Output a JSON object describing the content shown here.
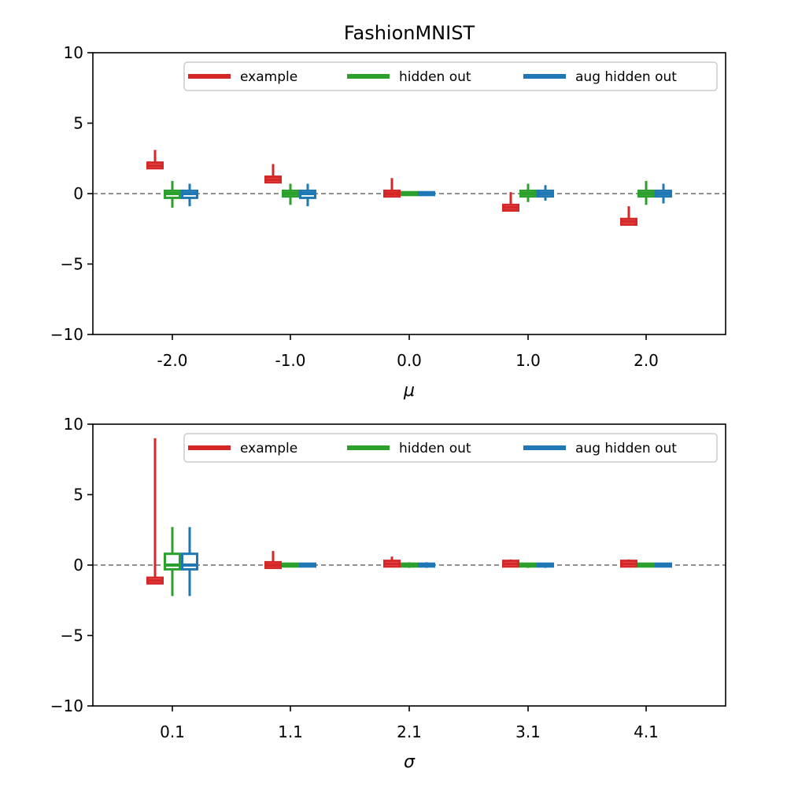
{
  "colors": {
    "example": "#d62728",
    "hidden": "#2ca02c",
    "aug": "#1f77b4",
    "zeroline": "#808080"
  },
  "chart_data": [
    {
      "type": "boxplot",
      "title": "FashionMNIST",
      "xlabel": "μ",
      "ylabel": "",
      "ylim": [
        -10,
        10
      ],
      "yticks": [
        -10,
        -5,
        0,
        5,
        10
      ],
      "ytick_labels": [
        "−10",
        "−5",
        "0",
        "5",
        "10"
      ],
      "categories": [
        "-2.0",
        "-1.0",
        "0.0",
        "1.0",
        "2.0"
      ],
      "zero_line": true,
      "legend": {
        "placement": "top-right",
        "entries": [
          "example",
          "hidden out",
          "aug hidden out"
        ]
      },
      "series": [
        {
          "name": "example",
          "color_key": "example",
          "boxes": [
            {
              "min": 1.8,
              "q1": 1.8,
              "median": 2.0,
              "q3": 2.2,
              "max": 3.1
            },
            {
              "min": 0.8,
              "q1": 0.8,
              "median": 1.0,
              "q3": 1.2,
              "max": 2.1
            },
            {
              "min": -0.2,
              "q1": -0.2,
              "median": 0.0,
              "q3": 0.2,
              "max": 1.1
            },
            {
              "min": -1.2,
              "q1": -1.2,
              "median": -1.0,
              "q3": -0.8,
              "max": 0.1
            },
            {
              "min": -2.2,
              "q1": -2.2,
              "median": -2.0,
              "q3": -1.8,
              "max": -0.9
            }
          ]
        },
        {
          "name": "hidden out",
          "color_key": "hidden",
          "boxes": [
            {
              "min": -1.0,
              "q1": -0.3,
              "median": 0.0,
              "q3": 0.2,
              "max": 0.9
            },
            {
              "min": -0.8,
              "q1": -0.2,
              "median": 0.0,
              "q3": 0.2,
              "max": 0.7
            },
            {
              "min": -0.1,
              "q1": -0.1,
              "median": 0.0,
              "q3": 0.1,
              "max": 0.1
            },
            {
              "min": -0.6,
              "q1": -0.2,
              "median": 0.0,
              "q3": 0.2,
              "max": 0.7
            },
            {
              "min": -0.8,
              "q1": -0.2,
              "median": 0.0,
              "q3": 0.2,
              "max": 0.9
            }
          ]
        },
        {
          "name": "aug hidden out",
          "color_key": "aug",
          "boxes": [
            {
              "min": -0.9,
              "q1": -0.3,
              "median": 0.0,
              "q3": 0.2,
              "max": 0.7
            },
            {
              "min": -0.9,
              "q1": -0.3,
              "median": 0.0,
              "q3": 0.2,
              "max": 0.7
            },
            {
              "min": -0.1,
              "q1": -0.1,
              "median": 0.0,
              "q3": 0.1,
              "max": 0.1
            },
            {
              "min": -0.5,
              "q1": -0.2,
              "median": 0.0,
              "q3": 0.2,
              "max": 0.6
            },
            {
              "min": -0.7,
              "q1": -0.2,
              "median": 0.0,
              "q3": 0.2,
              "max": 0.7
            }
          ]
        }
      ]
    },
    {
      "type": "boxplot",
      "title": "",
      "xlabel": "σ",
      "ylabel": "",
      "ylim": [
        -10,
        10
      ],
      "yticks": [
        -10,
        -5,
        0,
        5,
        10
      ],
      "ytick_labels": [
        "−10",
        "−5",
        "0",
        "5",
        "10"
      ],
      "categories": [
        "0.1",
        "1.1",
        "2.1",
        "3.1",
        "4.1"
      ],
      "zero_line": true,
      "legend": {
        "placement": "top-right",
        "entries": [
          "example",
          "hidden out",
          "aug hidden out"
        ]
      },
      "series": [
        {
          "name": "example",
          "color_key": "example",
          "boxes": [
            {
              "min": -1.3,
              "q1": -1.3,
              "median": -1.1,
              "q3": -0.9,
              "max": 9.0
            },
            {
              "min": -0.2,
              "q1": -0.2,
              "median": 0.0,
              "q3": 0.2,
              "max": 1.0
            },
            {
              "min": -0.1,
              "q1": -0.1,
              "median": 0.1,
              "q3": 0.3,
              "max": 0.6
            },
            {
              "min": -0.1,
              "q1": -0.1,
              "median": 0.1,
              "q3": 0.3,
              "max": 0.4
            },
            {
              "min": -0.1,
              "q1": -0.1,
              "median": 0.1,
              "q3": 0.3,
              "max": 0.4
            }
          ]
        },
        {
          "name": "hidden out",
          "color_key": "hidden",
          "boxes": [
            {
              "min": -2.2,
              "q1": -0.3,
              "median": 0.0,
              "q3": 0.8,
              "max": 2.7
            },
            {
              "min": -0.1,
              "q1": -0.1,
              "median": 0.0,
              "q3": 0.1,
              "max": 0.1
            },
            {
              "min": -0.2,
              "q1": -0.1,
              "median": 0.0,
              "q3": 0.1,
              "max": 0.2
            },
            {
              "min": -0.2,
              "q1": -0.1,
              "median": 0.0,
              "q3": 0.1,
              "max": 0.1
            },
            {
              "min": -0.1,
              "q1": -0.1,
              "median": 0.0,
              "q3": 0.1,
              "max": 0.1
            }
          ]
        },
        {
          "name": "aug hidden out",
          "color_key": "aug",
          "boxes": [
            {
              "min": -2.2,
              "q1": -0.3,
              "median": 0.0,
              "q3": 0.8,
              "max": 2.7
            },
            {
              "min": -0.1,
              "q1": -0.1,
              "median": 0.0,
              "q3": 0.1,
              "max": 0.1
            },
            {
              "min": -0.2,
              "q1": -0.1,
              "median": 0.0,
              "q3": 0.1,
              "max": 0.2
            },
            {
              "min": -0.2,
              "q1": -0.1,
              "median": 0.0,
              "q3": 0.1,
              "max": 0.1
            },
            {
              "min": -0.1,
              "q1": -0.1,
              "median": 0.0,
              "q3": 0.1,
              "max": 0.1
            }
          ]
        }
      ]
    }
  ]
}
